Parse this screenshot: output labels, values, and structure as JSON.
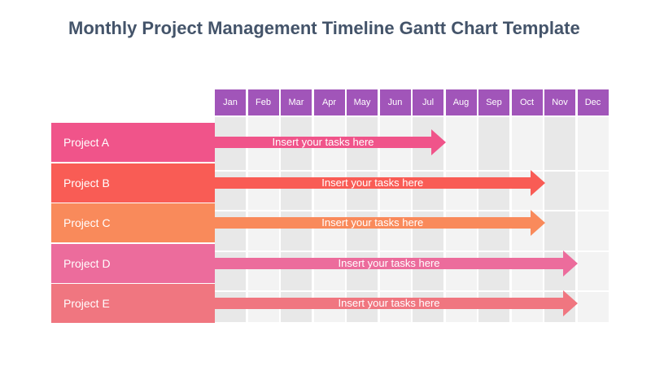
{
  "title": "Monthly Project Management Timeline Gantt Chart Template",
  "months": [
    "Jan",
    "Feb",
    "Mar",
    "Apr",
    "May",
    "Jun",
    "Jul",
    "Aug",
    "Sep",
    "Oct",
    "Nov",
    "Dec"
  ],
  "colors": {
    "month_header": "#a155b9",
    "project_a": "#f0548a",
    "project_b": "#f95c55",
    "project_c": "#f98a5b",
    "project_d": "#ec6c9c",
    "project_e": "#f07680"
  },
  "projects": [
    {
      "name": "Project A",
      "task": "Insert your tasks here",
      "end_month": "Jul"
    },
    {
      "name": "Project B",
      "task": "Insert your tasks here",
      "end_month": "Oct"
    },
    {
      "name": "Project C",
      "task": "Insert your tasks here",
      "end_month": "Oct"
    },
    {
      "name": "Project D",
      "task": "Insert your tasks here",
      "end_month": "Nov"
    },
    {
      "name": "Project E",
      "task": "Insert your tasks here",
      "end_month": "Nov"
    }
  ]
}
